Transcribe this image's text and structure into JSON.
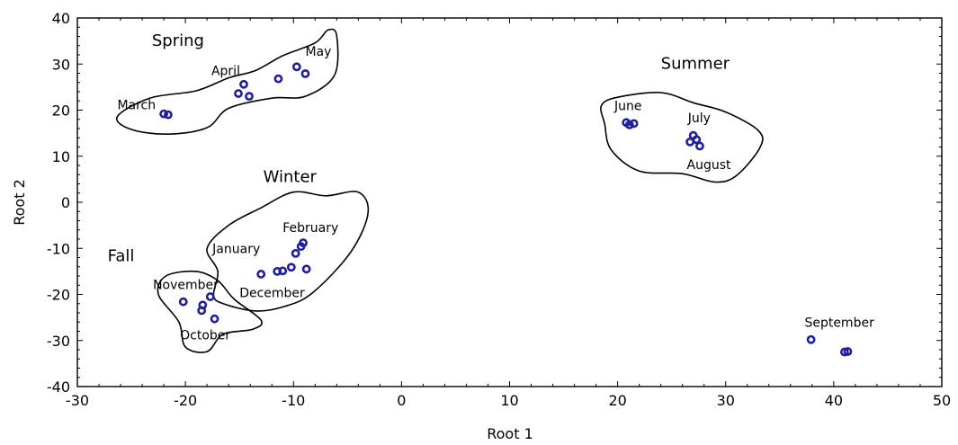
{
  "chart_data": {
    "type": "scatter",
    "xlabel": "Root 1",
    "ylabel": "Root 2",
    "xlim": [
      -30,
      50
    ],
    "ylim": [
      -40,
      40
    ],
    "xticks": [
      -30,
      -20,
      -10,
      0,
      10,
      20,
      30,
      40,
      50
    ],
    "yticks": [
      -40,
      -30,
      -20,
      -10,
      0,
      10,
      20,
      30,
      40
    ],
    "grid": false,
    "points": [
      {
        "x": -22.0,
        "y": 19.2
      },
      {
        "x": -21.6,
        "y": 19.0
      },
      {
        "x": -15.1,
        "y": 23.6
      },
      {
        "x": -14.6,
        "y": 25.6
      },
      {
        "x": -14.1,
        "y": 23.0
      },
      {
        "x": -11.4,
        "y": 26.8
      },
      {
        "x": -9.7,
        "y": 29.4
      },
      {
        "x": -8.9,
        "y": 27.9
      },
      {
        "x": 20.8,
        "y": 17.3
      },
      {
        "x": 21.1,
        "y": 16.8
      },
      {
        "x": 21.5,
        "y": 17.1
      },
      {
        "x": 26.7,
        "y": 13.1
      },
      {
        "x": 27.0,
        "y": 14.5
      },
      {
        "x": 27.3,
        "y": 13.6
      },
      {
        "x": 27.6,
        "y": 12.2
      },
      {
        "x": -13.0,
        "y": -15.6
      },
      {
        "x": -11.5,
        "y": -15.0
      },
      {
        "x": -11.0,
        "y": -14.9
      },
      {
        "x": -10.2,
        "y": -14.1
      },
      {
        "x": -8.8,
        "y": -14.5
      },
      {
        "x": -9.8,
        "y": -11.1
      },
      {
        "x": -9.3,
        "y": -9.6
      },
      {
        "x": -9.1,
        "y": -8.8
      },
      {
        "x": -20.2,
        "y": -21.6
      },
      {
        "x": -18.5,
        "y": -23.5
      },
      {
        "x": -18.4,
        "y": -22.3
      },
      {
        "x": -17.7,
        "y": -20.5
      },
      {
        "x": -17.3,
        "y": -25.3
      },
      {
        "x": 37.9,
        "y": -29.8
      },
      {
        "x": 41.0,
        "y": -32.5
      },
      {
        "x": 41.3,
        "y": -32.4
      }
    ],
    "groups": [
      {
        "name": "Spring",
        "label_at": [
          -23.1,
          34.0
        ],
        "hull": [
          [
            -21.6,
            14.8
          ],
          [
            -25.0,
            15.8
          ],
          [
            -26.3,
            18.6
          ],
          [
            -23.3,
            22.6
          ],
          [
            -19.0,
            24.2
          ],
          [
            -16.0,
            27.0
          ],
          [
            -13.5,
            28.6
          ],
          [
            -11.0,
            31.8
          ],
          [
            -8.0,
            34.6
          ],
          [
            -6.8,
            37.4
          ],
          [
            -6.0,
            36.2
          ],
          [
            -6.2,
            27.6
          ],
          [
            -8.9,
            23.0
          ],
          [
            -12.0,
            22.6
          ],
          [
            -16.0,
            20.4
          ],
          [
            -18.0,
            16.2
          ]
        ]
      },
      {
        "name": "Summer",
        "label_at": [
          24.0,
          29.0
        ],
        "hull": [
          [
            18.5,
            21.0
          ],
          [
            20.0,
            22.8
          ],
          [
            24.0,
            23.8
          ],
          [
            27.0,
            21.6
          ],
          [
            30.0,
            19.6
          ],
          [
            33.0,
            15.6
          ],
          [
            33.2,
            12.0
          ],
          [
            31.0,
            5.8
          ],
          [
            29.0,
            4.4
          ],
          [
            26.0,
            6.2
          ],
          [
            22.0,
            6.8
          ],
          [
            19.4,
            11.4
          ],
          [
            18.8,
            17.0
          ]
        ]
      },
      {
        "name": "Winter",
        "label_at": [
          -12.8,
          4.4
        ],
        "hull": [
          [
            -13.0,
            -1.2
          ],
          [
            -10.0,
            2.2
          ],
          [
            -7.0,
            1.4
          ],
          [
            -4.0,
            2.2
          ],
          [
            -3.1,
            -2.4
          ],
          [
            -4.7,
            -10.8
          ],
          [
            -8.2,
            -19.6
          ],
          [
            -10.8,
            -22.6
          ],
          [
            -13.5,
            -23.6
          ],
          [
            -16.5,
            -22.0
          ],
          [
            -17.4,
            -20.2
          ],
          [
            -17.0,
            -15.0
          ],
          [
            -18.0,
            -10.0
          ],
          [
            -16.0,
            -5.0
          ]
        ]
      },
      {
        "name": "Fall",
        "label_at": [
          -27.2,
          -12.8
        ],
        "hull": [
          [
            -21.8,
            -16.0
          ],
          [
            -19.0,
            -15.0
          ],
          [
            -17.0,
            -17.0
          ],
          [
            -15.5,
            -21.0
          ],
          [
            -13.0,
            -25.6
          ],
          [
            -13.8,
            -27.6
          ],
          [
            -16.5,
            -28.6
          ],
          [
            -18.0,
            -32.4
          ],
          [
            -20.0,
            -31.4
          ],
          [
            -20.6,
            -26.0
          ],
          [
            -22.5,
            -20.0
          ]
        ]
      }
    ],
    "annotations": [
      {
        "text": "March",
        "at": [
          -26.3,
          20.2
        ]
      },
      {
        "text": "April",
        "at": [
          -17.6,
          27.6
        ]
      },
      {
        "text": "May",
        "at": [
          -8.9,
          31.8
        ]
      },
      {
        "text": "June",
        "at": [
          19.7,
          20.0
        ]
      },
      {
        "text": "July",
        "at": [
          26.5,
          17.4
        ]
      },
      {
        "text": "August",
        "at": [
          26.4,
          7.2
        ]
      },
      {
        "text": "February",
        "at": [
          -11.0,
          -6.4
        ]
      },
      {
        "text": "January",
        "at": [
          -17.5,
          -11.0
        ]
      },
      {
        "text": "December",
        "at": [
          -15.0,
          -20.6
        ]
      },
      {
        "text": "November",
        "at": [
          -23.0,
          -18.8
        ]
      },
      {
        "text": "October",
        "at": [
          -20.5,
          -29.8
        ]
      },
      {
        "text": "September",
        "at": [
          37.3,
          -27.0
        ]
      }
    ]
  }
}
